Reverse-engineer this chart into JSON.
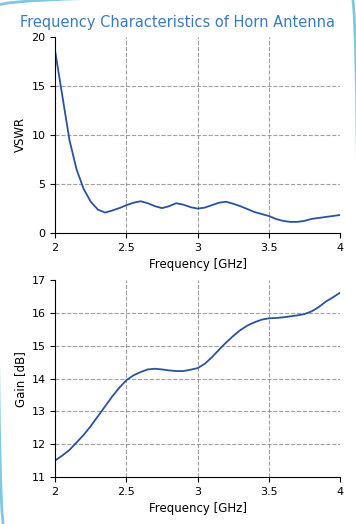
{
  "title": "Frequency Characteristics of Horn Antenna",
  "title_color": "#3a7bbf",
  "title_fontsize": 10.5,
  "background_color": "#ffffff",
  "border_color": "#7ec8e3",
  "line_color": "#2a52a0",
  "line_width": 1.3,
  "grid_color": "#888888",
  "grid_alpha": 0.8,
  "vswr_freq": [
    1.95,
    2.0,
    2.05,
    2.1,
    2.15,
    2.2,
    2.25,
    2.3,
    2.35,
    2.4,
    2.45,
    2.5,
    2.55,
    2.6,
    2.65,
    2.7,
    2.75,
    2.8,
    2.85,
    2.9,
    2.95,
    3.0,
    3.05,
    3.1,
    3.15,
    3.2,
    3.25,
    3.3,
    3.35,
    3.4,
    3.45,
    3.5,
    3.55,
    3.6,
    3.65,
    3.7,
    3.75,
    3.8,
    3.85,
    3.9,
    3.95,
    4.0
  ],
  "vswr_vals": [
    20.0,
    18.5,
    14.0,
    9.5,
    6.5,
    4.5,
    3.2,
    2.4,
    2.1,
    2.3,
    2.55,
    2.85,
    3.1,
    3.25,
    3.05,
    2.75,
    2.55,
    2.75,
    3.05,
    2.9,
    2.65,
    2.5,
    2.6,
    2.85,
    3.1,
    3.2,
    3.0,
    2.75,
    2.45,
    2.15,
    1.95,
    1.75,
    1.45,
    1.25,
    1.15,
    1.15,
    1.25,
    1.45,
    1.55,
    1.65,
    1.75,
    1.85
  ],
  "vswr_xlim": [
    2.0,
    4.0
  ],
  "vswr_ylim": [
    0,
    20
  ],
  "vswr_yticks": [
    0,
    5,
    10,
    15,
    20
  ],
  "vswr_xtick_vals": [
    2.0,
    2.5,
    3.0,
    3.5,
    4.0
  ],
  "vswr_xtick_labels": [
    "2",
    "2.5",
    "3",
    "3.5",
    "4"
  ],
  "vswr_xlabel": "Frequency [GHz]",
  "vswr_ylabel": "VSWR",
  "vswr_grid_xticks": [
    2.5,
    3.0,
    3.5
  ],
  "vswr_grid_yticks": [
    5,
    10,
    15
  ],
  "gain_freq": [
    2.0,
    2.05,
    2.1,
    2.15,
    2.2,
    2.25,
    2.3,
    2.35,
    2.4,
    2.45,
    2.5,
    2.55,
    2.6,
    2.65,
    2.7,
    2.75,
    2.8,
    2.85,
    2.9,
    2.95,
    3.0,
    3.05,
    3.1,
    3.15,
    3.2,
    3.25,
    3.3,
    3.35,
    3.4,
    3.45,
    3.5,
    3.55,
    3.6,
    3.65,
    3.7,
    3.75,
    3.8,
    3.85,
    3.9,
    3.95,
    4.0
  ],
  "gain_vals": [
    11.5,
    11.65,
    11.82,
    12.05,
    12.28,
    12.55,
    12.85,
    13.15,
    13.45,
    13.72,
    13.95,
    14.1,
    14.2,
    14.28,
    14.3,
    14.28,
    14.25,
    14.23,
    14.23,
    14.27,
    14.32,
    14.45,
    14.65,
    14.88,
    15.1,
    15.3,
    15.48,
    15.62,
    15.72,
    15.8,
    15.84,
    15.85,
    15.87,
    15.9,
    15.93,
    15.97,
    16.05,
    16.18,
    16.35,
    16.48,
    16.62
  ],
  "gain_xlim": [
    2.0,
    4.0
  ],
  "gain_ylim": [
    11,
    17
  ],
  "gain_yticks": [
    11,
    12,
    13,
    14,
    15,
    16,
    17
  ],
  "gain_xtick_vals": [
    2.0,
    2.5,
    3.0,
    3.5,
    4.0
  ],
  "gain_xtick_labels": [
    "2",
    "2.5",
    "3",
    "3.5",
    "4"
  ],
  "gain_xlabel": "Frequency [GHz]",
  "gain_ylabel": "Gain [dB]",
  "gain_grid_xticks": [
    2.5,
    3.0,
    3.5
  ],
  "gain_grid_yticks": [
    12,
    13,
    14,
    15,
    16
  ]
}
